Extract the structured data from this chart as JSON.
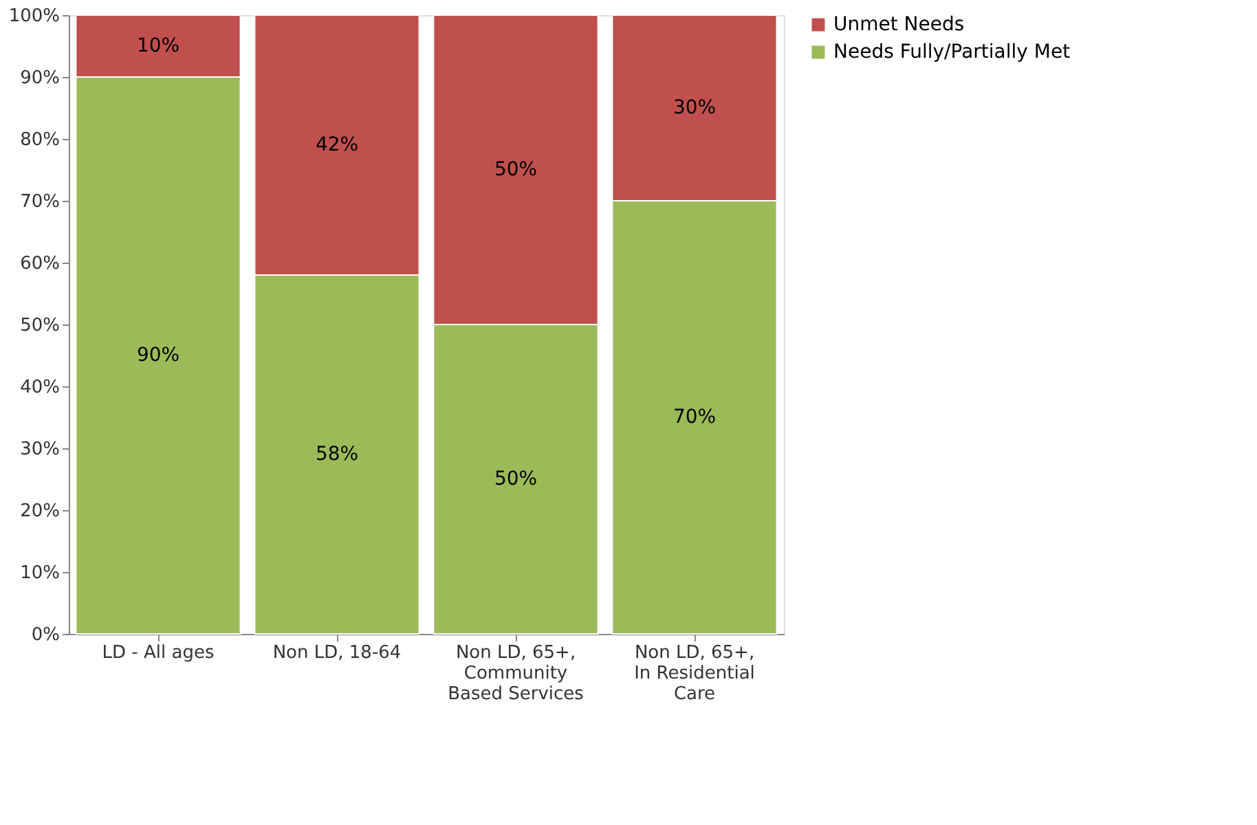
{
  "chart_data": {
    "type": "bar",
    "stacked": true,
    "legend": "right",
    "grid": false,
    "categories": [
      "LD - All ages",
      "Non LD, 18-64",
      "Non LD, 65+, Community Based Services",
      "Non LD, 65+, In Residential Care"
    ],
    "series": [
      {
        "name": "Needs Fully/Partially Met",
        "color": "#9bbb59",
        "values": [
          90,
          58,
          50,
          70
        ],
        "value_labels": [
          "90%",
          "58%",
          "50%",
          "70%"
        ]
      },
      {
        "name": "Unmet Needs",
        "color": "#c0504d",
        "values": [
          10,
          42,
          50,
          30
        ],
        "value_labels": [
          "10%",
          "42%",
          "50%",
          "30%"
        ]
      }
    ],
    "ylim": [
      0,
      100
    ],
    "yticks": [
      {
        "value": 0,
        "label": "0%"
      },
      {
        "value": 10,
        "label": "10%"
      },
      {
        "value": 20,
        "label": "20%"
      },
      {
        "value": 30,
        "label": "30%"
      },
      {
        "value": 40,
        "label": "40%"
      },
      {
        "value": 50,
        "label": "50%"
      },
      {
        "value": 60,
        "label": "60%"
      },
      {
        "value": 70,
        "label": "70%"
      },
      {
        "value": 80,
        "label": "80%"
      },
      {
        "value": 90,
        "label": "90%"
      },
      {
        "value": 100,
        "label": "100%"
      }
    ]
  }
}
